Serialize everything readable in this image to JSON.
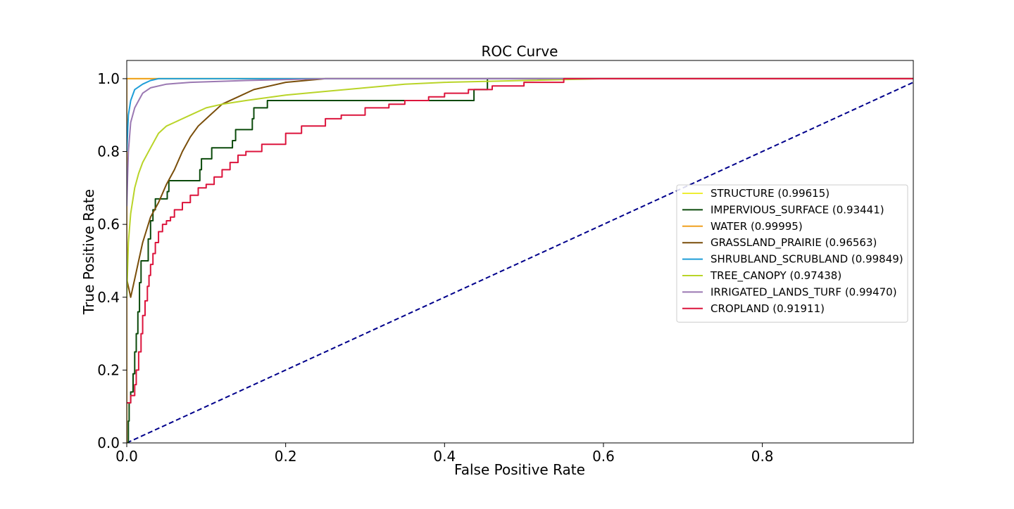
{
  "chart_data": {
    "type": "line",
    "title": "ROC Curve",
    "xlabel": "False Positive Rate",
    "ylabel": "True Positive Rate",
    "xlim": [
      0.0,
      0.99
    ],
    "ylim": [
      0.0,
      1.05
    ],
    "xticks": [
      0.0,
      0.2,
      0.4,
      0.6,
      0.8
    ],
    "xtick_labels": [
      "0.0",
      "0.2",
      "0.4",
      "0.6",
      "0.8"
    ],
    "yticks": [
      0.0,
      0.2,
      0.4,
      0.6,
      0.8,
      1.0
    ],
    "ytick_labels": [
      "0.0",
      "0.2",
      "0.4",
      "0.6",
      "0.8",
      "1.0"
    ],
    "grid": false,
    "legend_position": "center-right",
    "reference_line": {
      "from": [
        0,
        0
      ],
      "to": [
        1,
        1
      ],
      "color": "#00008b",
      "style": "dashed"
    },
    "series": [
      {
        "name": "STRUCTURE (0.99615)",
        "color": "#eeee33",
        "step": false,
        "points": [
          [
            0,
            0
          ],
          [
            0,
            1.0
          ],
          [
            0.73,
            1.0
          ],
          [
            0.99,
            1.0
          ]
        ]
      },
      {
        "name": "IMPERVIOUS_SURFACE (0.93441)",
        "color": "#0b4a0b",
        "step": true,
        "points": [
          [
            0,
            0
          ],
          [
            0.002,
            0.06
          ],
          [
            0.003,
            0.11
          ],
          [
            0.005,
            0.14
          ],
          [
            0.008,
            0.19
          ],
          [
            0.01,
            0.25
          ],
          [
            0.012,
            0.3
          ],
          [
            0.014,
            0.36
          ],
          [
            0.016,
            0.44
          ],
          [
            0.018,
            0.5
          ],
          [
            0.025,
            0.5
          ],
          [
            0.027,
            0.56
          ],
          [
            0.03,
            0.61
          ],
          [
            0.033,
            0.64
          ],
          [
            0.036,
            0.67
          ],
          [
            0.05,
            0.67
          ],
          [
            0.051,
            0.69
          ],
          [
            0.053,
            0.72
          ],
          [
            0.09,
            0.72
          ],
          [
            0.092,
            0.75
          ],
          [
            0.094,
            0.78
          ],
          [
            0.105,
            0.78
          ],
          [
            0.107,
            0.81
          ],
          [
            0.13,
            0.81
          ],
          [
            0.133,
            0.83
          ],
          [
            0.137,
            0.86
          ],
          [
            0.155,
            0.86
          ],
          [
            0.158,
            0.89
          ],
          [
            0.16,
            0.92
          ],
          [
            0.175,
            0.92
          ],
          [
            0.177,
            0.94
          ],
          [
            0.435,
            0.94
          ],
          [
            0.437,
            0.97
          ],
          [
            0.452,
            0.97
          ],
          [
            0.454,
            1.0
          ],
          [
            0.99,
            1.0
          ]
        ]
      },
      {
        "name": "WATER (0.99995)",
        "color": "#f0a020",
        "step": false,
        "points": [
          [
            0,
            0
          ],
          [
            0,
            1.0
          ],
          [
            0.99,
            1.0
          ]
        ]
      },
      {
        "name": "GRASSLAND_PRAIRIE (0.96563)",
        "color": "#7a4e0a",
        "step": false,
        "points": [
          [
            0,
            0.45
          ],
          [
            0.005,
            0.4
          ],
          [
            0.01,
            0.45
          ],
          [
            0.015,
            0.5
          ],
          [
            0.02,
            0.55
          ],
          [
            0.03,
            0.62
          ],
          [
            0.04,
            0.66
          ],
          [
            0.05,
            0.71
          ],
          [
            0.06,
            0.75
          ],
          [
            0.07,
            0.8
          ],
          [
            0.08,
            0.84
          ],
          [
            0.09,
            0.87
          ],
          [
            0.1,
            0.89
          ],
          [
            0.12,
            0.93
          ],
          [
            0.14,
            0.95
          ],
          [
            0.16,
            0.97
          ],
          [
            0.2,
            0.99
          ],
          [
            0.25,
            1.0
          ],
          [
            0.99,
            1.0
          ]
        ]
      },
      {
        "name": "SHRUBLAND_SCRUBLAND (0.99849)",
        "color": "#1f9ed8",
        "step": false,
        "points": [
          [
            0,
            0.8
          ],
          [
            0.002,
            0.9
          ],
          [
            0.005,
            0.94
          ],
          [
            0.01,
            0.97
          ],
          [
            0.02,
            0.985
          ],
          [
            0.03,
            0.995
          ],
          [
            0.04,
            1.0
          ],
          [
            0.99,
            1.0
          ]
        ]
      },
      {
        "name": "TREE_CANOPY (0.97438)",
        "color": "#b9d428",
        "step": false,
        "points": [
          [
            0,
            0.4
          ],
          [
            0.002,
            0.55
          ],
          [
            0.005,
            0.63
          ],
          [
            0.01,
            0.7
          ],
          [
            0.015,
            0.74
          ],
          [
            0.02,
            0.77
          ],
          [
            0.03,
            0.81
          ],
          [
            0.04,
            0.85
          ],
          [
            0.05,
            0.87
          ],
          [
            0.06,
            0.88
          ],
          [
            0.08,
            0.9
          ],
          [
            0.1,
            0.92
          ],
          [
            0.12,
            0.93
          ],
          [
            0.15,
            0.94
          ],
          [
            0.2,
            0.955
          ],
          [
            0.25,
            0.965
          ],
          [
            0.3,
            0.975
          ],
          [
            0.35,
            0.985
          ],
          [
            0.4,
            0.99
          ],
          [
            0.5,
            0.995
          ],
          [
            0.6,
            1.0
          ],
          [
            0.99,
            1.0
          ]
        ]
      },
      {
        "name": "IRRIGATED_LANDS_TURF (0.99470)",
        "color": "#9a78b2",
        "step": false,
        "points": [
          [
            0,
            0.65
          ],
          [
            0.002,
            0.8
          ],
          [
            0.005,
            0.88
          ],
          [
            0.01,
            0.92
          ],
          [
            0.015,
            0.94
          ],
          [
            0.02,
            0.96
          ],
          [
            0.03,
            0.975
          ],
          [
            0.05,
            0.985
          ],
          [
            0.08,
            0.99
          ],
          [
            0.15,
            0.995
          ],
          [
            0.25,
            1.0
          ],
          [
            0.99,
            1.0
          ]
        ]
      },
      {
        "name": "CROPLAND (0.91911)",
        "color": "#dc143c",
        "step": true,
        "points": [
          [
            0,
            0.11
          ],
          [
            0.005,
            0.13
          ],
          [
            0.01,
            0.16
          ],
          [
            0.012,
            0.2
          ],
          [
            0.015,
            0.25
          ],
          [
            0.018,
            0.3
          ],
          [
            0.02,
            0.35
          ],
          [
            0.023,
            0.39
          ],
          [
            0.026,
            0.43
          ],
          [
            0.028,
            0.46
          ],
          [
            0.03,
            0.49
          ],
          [
            0.033,
            0.52
          ],
          [
            0.036,
            0.55
          ],
          [
            0.04,
            0.58
          ],
          [
            0.045,
            0.6
          ],
          [
            0.05,
            0.61
          ],
          [
            0.055,
            0.62
          ],
          [
            0.06,
            0.64
          ],
          [
            0.07,
            0.66
          ],
          [
            0.08,
            0.68
          ],
          [
            0.09,
            0.7
          ],
          [
            0.1,
            0.71
          ],
          [
            0.11,
            0.73
          ],
          [
            0.12,
            0.75
          ],
          [
            0.13,
            0.77
          ],
          [
            0.14,
            0.79
          ],
          [
            0.15,
            0.8
          ],
          [
            0.17,
            0.82
          ],
          [
            0.2,
            0.85
          ],
          [
            0.22,
            0.87
          ],
          [
            0.25,
            0.89
          ],
          [
            0.27,
            0.9
          ],
          [
            0.3,
            0.92
          ],
          [
            0.33,
            0.93
          ],
          [
            0.35,
            0.94
          ],
          [
            0.38,
            0.95
          ],
          [
            0.4,
            0.96
          ],
          [
            0.43,
            0.97
          ],
          [
            0.46,
            0.98
          ],
          [
            0.5,
            0.99
          ],
          [
            0.55,
            1.0
          ],
          [
            0.99,
            1.0
          ]
        ]
      }
    ]
  }
}
